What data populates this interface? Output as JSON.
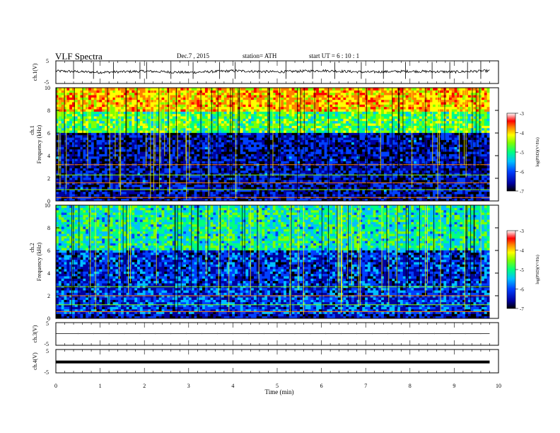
{
  "header": {
    "title": "VLF  Spectra",
    "date": "Dec.7  , 2015",
    "station": "station= ATH",
    "start": "start  UT  =   6  : 10 : 1"
  },
  "colors": {
    "background": "#ffffff",
    "frame": "#000000",
    "trace": "#000000",
    "colormap": [
      "#ffffff",
      "#ff0000",
      "#ff8000",
      "#ffff00",
      "#80ff00",
      "#00ff80",
      "#00c0ff",
      "#0040ff",
      "#0000a0",
      "#000000"
    ]
  },
  "chart_data": [
    {
      "type": "line",
      "panel": "ch1-waveform",
      "ylabel": "ch.1(V)",
      "xlim": [
        0,
        10
      ],
      "ylim": [
        -5,
        5
      ],
      "y_ticks": [
        "5",
        "-5"
      ],
      "series": [
        {
          "x": [
            0,
            1,
            2,
            3,
            4,
            5,
            6,
            7,
            8,
            9,
            9.8
          ],
          "values": [
            0.2,
            -0.4,
            0.1,
            -0.5,
            0.3,
            -0.2,
            0.4,
            -0.3,
            0.1,
            -0.2,
            0.3
          ]
        }
      ],
      "spikes_x": [
        0.4,
        0.85,
        1.3,
        1.9,
        2.05,
        2.6,
        3.1,
        3.7,
        4.05,
        4.6,
        5.2,
        5.8,
        6.3,
        6.9,
        7.4,
        7.9,
        8.5,
        8.9,
        9.3,
        9.6
      ]
    },
    {
      "type": "heatmap",
      "panel": "ch1-spectrogram",
      "side_label": "ch.1",
      "ylabel": "Frequency  (kHz)",
      "xlim": [
        0,
        10
      ],
      "ylim": [
        0,
        10
      ],
      "y_ticks": [
        "0",
        "2",
        "4",
        "6",
        "8",
        "10"
      ],
      "colorbar": {
        "label": "log(PSD)(V²/Hz)",
        "range": [
          -7,
          -3
        ],
        "ticks": [
          "-3",
          "-4",
          "-5",
          "-6",
          "-7"
        ]
      },
      "notes": "log(PSD) ≈ -3 to -4 above 8 kHz, -4.5 to -5 between 6 and 8 kHz, -6.5 to -7 between 0.5 and 6 kHz, persistent narrowband lines near 0.3, 1.0, 1.6, 2.3 and 3.2 kHz, broadband vertical impulses throughout"
    },
    {
      "type": "heatmap",
      "panel": "ch2-spectrogram",
      "side_label": "ch.2",
      "ylabel": "Frequency  (kHz)",
      "xlim": [
        0,
        10
      ],
      "ylim": [
        0,
        10
      ],
      "y_ticks": [
        "0",
        "2",
        "4",
        "6",
        "8",
        "10"
      ],
      "colorbar": {
        "label": "log(PSD)(V²/Hz)",
        "range": [
          -7,
          -3
        ],
        "ticks": [
          "-3",
          "-4",
          "-5",
          "-6",
          "-7"
        ]
      },
      "notes": "log(PSD) ≈ -5 to -6 above 6 kHz, -6 to -7 between 2.5 and 6 kHz, lines near 0.6, 1.2, 2.0 and 2.8 kHz"
    },
    {
      "type": "line",
      "panel": "ch3-waveform",
      "ylabel": "ch.3(V)",
      "xlim": [
        0,
        10
      ],
      "ylim": [
        -5,
        5
      ],
      "y_ticks": [
        "5",
        "-5"
      ],
      "series": [
        {
          "x": [
            0,
            9.8
          ],
          "values": [
            0,
            0
          ]
        }
      ]
    },
    {
      "type": "line",
      "panel": "ch4-waveform",
      "ylabel": "ch.4(V)",
      "xlim": [
        0,
        10
      ],
      "ylim": [
        -5,
        5
      ],
      "y_ticks": [
        "5",
        "-5"
      ],
      "series": [
        {
          "x": [
            0,
            9.8
          ],
          "values": [
            -0.2,
            -0.2
          ]
        }
      ]
    }
  ],
  "x_axis": {
    "label": "Time  (min)",
    "ticks": [
      "0",
      "1",
      "2",
      "3",
      "4",
      "5",
      "6",
      "7",
      "8",
      "9",
      "10"
    ]
  }
}
